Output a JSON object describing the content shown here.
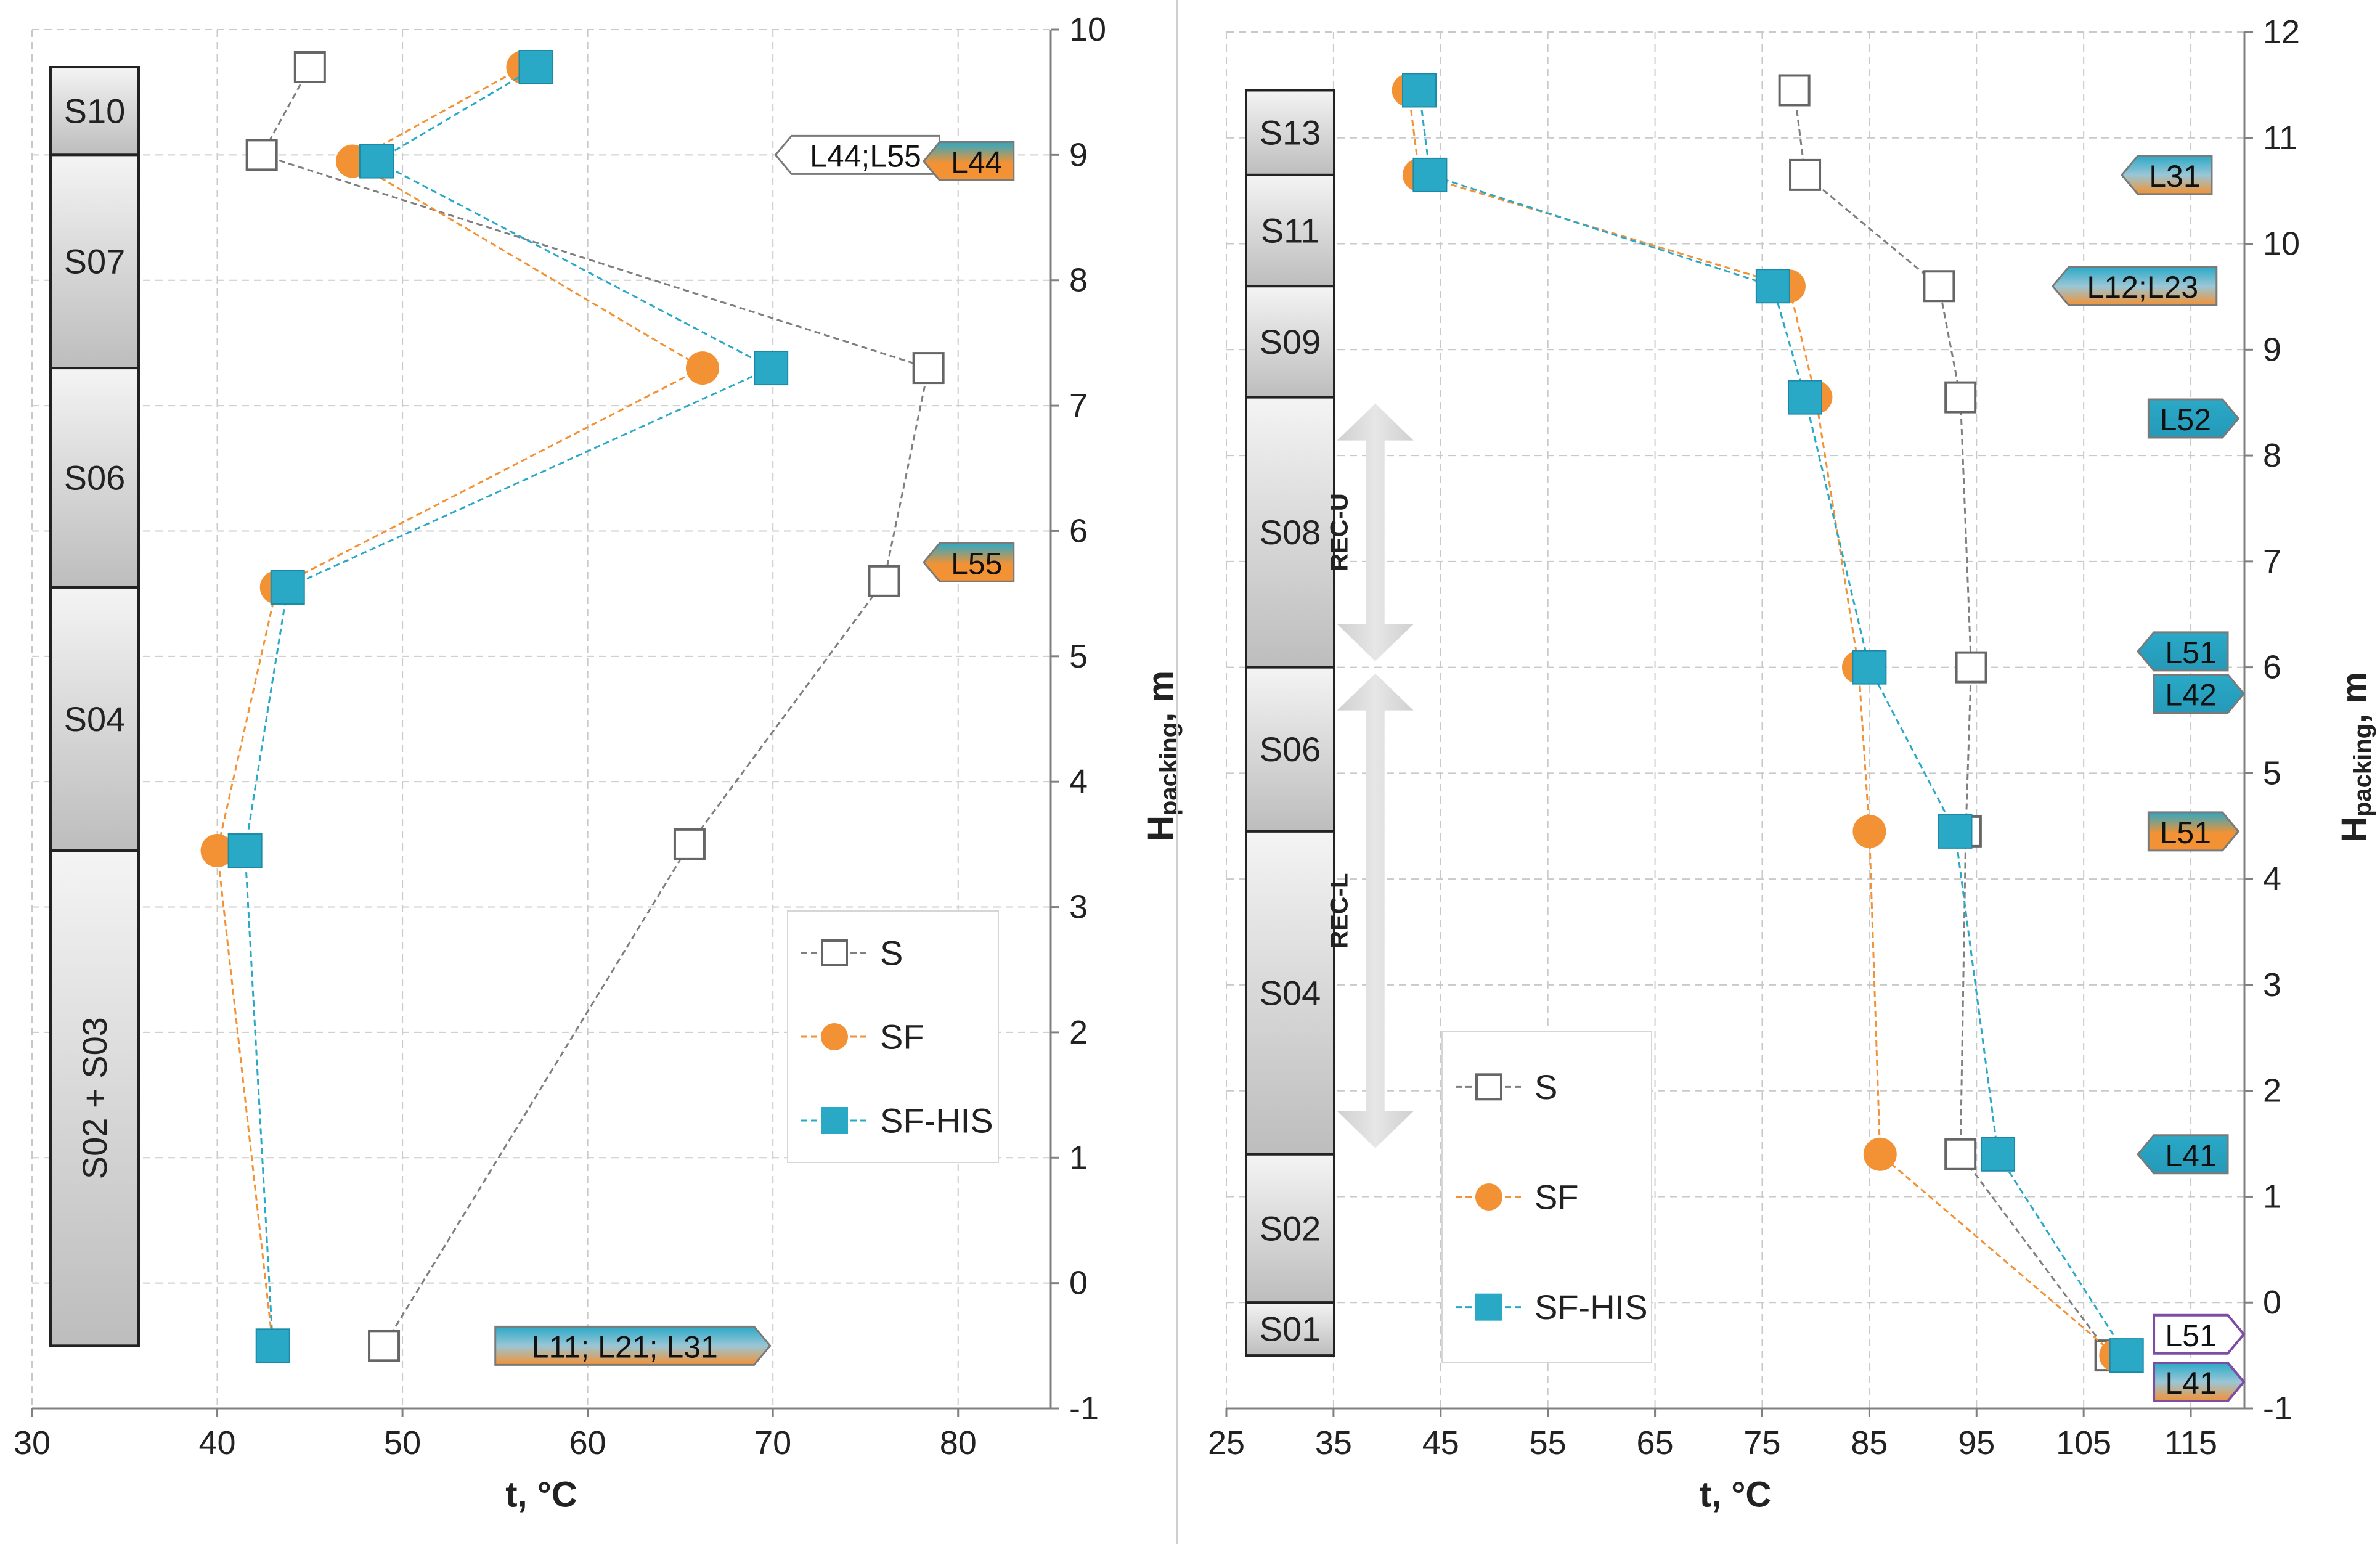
{
  "colors": {
    "s": "#7f7f7f",
    "sf": "#f39234",
    "sfhis": "#2aa9c7",
    "grid": "#c9c9c9",
    "axis": "#808080",
    "text": "#222222"
  },
  "chart_data": [
    {
      "type": "line",
      "xlabel": "t, °C",
      "ylabel_main": "H",
      "ylabel_sub": "packing",
      "ylabel_unit": ", m",
      "xlim": [
        30,
        85
      ],
      "ylim": [
        -1,
        10
      ],
      "xticks": [
        "30",
        "40",
        "50",
        "60",
        "70",
        "80"
      ],
      "yticks": [
        "-1",
        "0",
        "1",
        "2",
        "3",
        "4",
        "5",
        "6",
        "7",
        "8",
        "9",
        "10"
      ],
      "series": [
        {
          "name": "S",
          "marker": "open-square",
          "points": [
            {
              "x": 45,
              "y": 9.7
            },
            {
              "x": 42.4,
              "y": 9.0
            },
            {
              "x": 78.4,
              "y": 7.3
            },
            {
              "x": 76,
              "y": 5.6
            },
            {
              "x": 65.5,
              "y": 3.5
            },
            {
              "x": 49,
              "y": -0.5
            }
          ]
        },
        {
          "name": "SF",
          "marker": "circle",
          "points": [
            {
              "x": 56.5,
              "y": 9.7
            },
            {
              "x": 47.3,
              "y": 8.95
            },
            {
              "x": 66.2,
              "y": 7.3
            },
            {
              "x": 43.2,
              "y": 5.55
            },
            {
              "x": 40.0,
              "y": 3.45
            },
            {
              "x": 43.0,
              "y": -0.5
            }
          ]
        },
        {
          "name": "SF-HIS",
          "marker": "square",
          "points": [
            {
              "x": 57.2,
              "y": 9.7
            },
            {
              "x": 48.6,
              "y": 8.95
            },
            {
              "x": 69.9,
              "y": 7.3
            },
            {
              "x": 43.8,
              "y": 5.55
            },
            {
              "x": 41.5,
              "y": 3.45
            },
            {
              "x": 43.0,
              "y": -0.5
            }
          ]
        }
      ],
      "sections": [
        {
          "label": "S10",
          "y0": 9.0,
          "y1": 9.7
        },
        {
          "label": "S07",
          "y0": 7.3,
          "y1": 9.0
        },
        {
          "label": "S06",
          "y0": 5.55,
          "y1": 7.3
        },
        {
          "label": "S04",
          "y0": 3.45,
          "y1": 5.55
        },
        {
          "label": "S02 + S03",
          "y0": -0.5,
          "y1": 3.45,
          "vertical": true
        }
      ],
      "tags": [
        {
          "label": "L44;L55",
          "x": 75,
          "y": 9.0,
          "style": "outline",
          "dir": "left"
        },
        {
          "label": "L44",
          "x": 81,
          "y": 8.95,
          "style": "orange",
          "dir": "left"
        },
        {
          "label": "L55",
          "x": 81,
          "y": 5.75,
          "style": "orange",
          "dir": "left"
        },
        {
          "label": "L11; L21; L31",
          "x": 62,
          "y": -0.5,
          "style": "mixed",
          "dir": "right"
        }
      ],
      "legend": {
        "entries": [
          "S",
          "SF",
          "SF-HIS"
        ],
        "placement": "lower-right"
      }
    },
    {
      "type": "line",
      "xlabel": "t, °C",
      "ylabel_main": "H",
      "ylabel_sub": "packing",
      "ylabel_unit": ", m",
      "xlim": [
        25,
        120
      ],
      "ylim": [
        -1,
        12
      ],
      "xticks": [
        "25",
        "35",
        "45",
        "55",
        "65",
        "75",
        "85",
        "95",
        "105",
        "115"
      ],
      "yticks": [
        "-1",
        "0",
        "1",
        "2",
        "3",
        "4",
        "5",
        "6",
        "7",
        "8",
        "9",
        "10",
        "11",
        "12"
      ],
      "series": [
        {
          "name": "S",
          "marker": "open-square",
          "points": [
            {
              "x": 78.0,
              "y": 11.45
            },
            {
              "x": 79.0,
              "y": 10.65
            },
            {
              "x": 91.5,
              "y": 9.6
            },
            {
              "x": 93.5,
              "y": 8.55
            },
            {
              "x": 94.5,
              "y": 6.0
            },
            {
              "x": 94.0,
              "y": 4.45
            },
            {
              "x": 93.5,
              "y": 1.4
            },
            {
              "x": 107.5,
              "y": -0.5
            }
          ]
        },
        {
          "name": "SF",
          "marker": "circle",
          "points": [
            {
              "x": 42.0,
              "y": 11.45
            },
            {
              "x": 43.0,
              "y": 10.65
            },
            {
              "x": 77.5,
              "y": 9.6
            },
            {
              "x": 80.0,
              "y": 8.55
            },
            {
              "x": 84.0,
              "y": 6.0
            },
            {
              "x": 85.0,
              "y": 4.45
            },
            {
              "x": 86.0,
              "y": 1.4
            },
            {
              "x": 108.0,
              "y": -0.5
            }
          ]
        },
        {
          "name": "SF-HIS",
          "marker": "square",
          "points": [
            {
              "x": 43.0,
              "y": 11.45
            },
            {
              "x": 44.0,
              "y": 10.65
            },
            {
              "x": 76.0,
              "y": 9.6
            },
            {
              "x": 79.0,
              "y": 8.55
            },
            {
              "x": 85.0,
              "y": 6.0
            },
            {
              "x": 93.0,
              "y": 4.45
            },
            {
              "x": 97.0,
              "y": 1.4
            },
            {
              "x": 109.0,
              "y": -0.5
            }
          ]
        }
      ],
      "sections": [
        {
          "label": "S13",
          "y0": 10.65,
          "y1": 11.45
        },
        {
          "label": "S11",
          "y0": 9.6,
          "y1": 10.65
        },
        {
          "label": "S09",
          "y0": 8.55,
          "y1": 9.6
        },
        {
          "label": "S08",
          "y0": 6.0,
          "y1": 8.55
        },
        {
          "label": "S06",
          "y0": 4.45,
          "y1": 6.0
        },
        {
          "label": "S04",
          "y0": 1.4,
          "y1": 4.45
        },
        {
          "label": "S02",
          "y0": 0.0,
          "y1": 1.4
        },
        {
          "label": "S01",
          "y0": -0.5,
          "y1": 0.0
        }
      ],
      "arrows": [
        {
          "label": "REC-U",
          "x": 38.9,
          "y0": 8.55,
          "y1": 6.0
        },
        {
          "label": "REC-L",
          "x": 38.9,
          "y0": 6.0,
          "y1": 1.4
        }
      ],
      "tags": [
        {
          "label": "L31",
          "x": 113.5,
          "y": 10.65,
          "style": "mixed",
          "dir": "left"
        },
        {
          "label": "L12;L23",
          "x": 110.5,
          "y": 9.6,
          "style": "mixed",
          "dir": "left"
        },
        {
          "label": "L52",
          "x": 114.5,
          "y": 8.35,
          "style": "blue",
          "dir": "right"
        },
        {
          "label": "L51",
          "x": 115.0,
          "y": 6.15,
          "style": "blue",
          "dir": "left"
        },
        {
          "label": "L42",
          "x": 115.0,
          "y": 5.75,
          "style": "blue",
          "dir": "right"
        },
        {
          "label": "L51",
          "x": 114.5,
          "y": 4.45,
          "style": "orange",
          "dir": "right"
        },
        {
          "label": "L41",
          "x": 115.0,
          "y": 1.4,
          "style": "blue",
          "dir": "left"
        },
        {
          "label": "L51",
          "x": 115.0,
          "y": -0.3,
          "style": "outline-purple",
          "dir": "right"
        },
        {
          "label": "L41",
          "x": 115.0,
          "y": -0.75,
          "style": "mixed-purple",
          "dir": "right"
        }
      ],
      "legend": {
        "entries": [
          "S",
          "SF",
          "SF-HIS"
        ],
        "placement": "lower-left"
      }
    }
  ]
}
